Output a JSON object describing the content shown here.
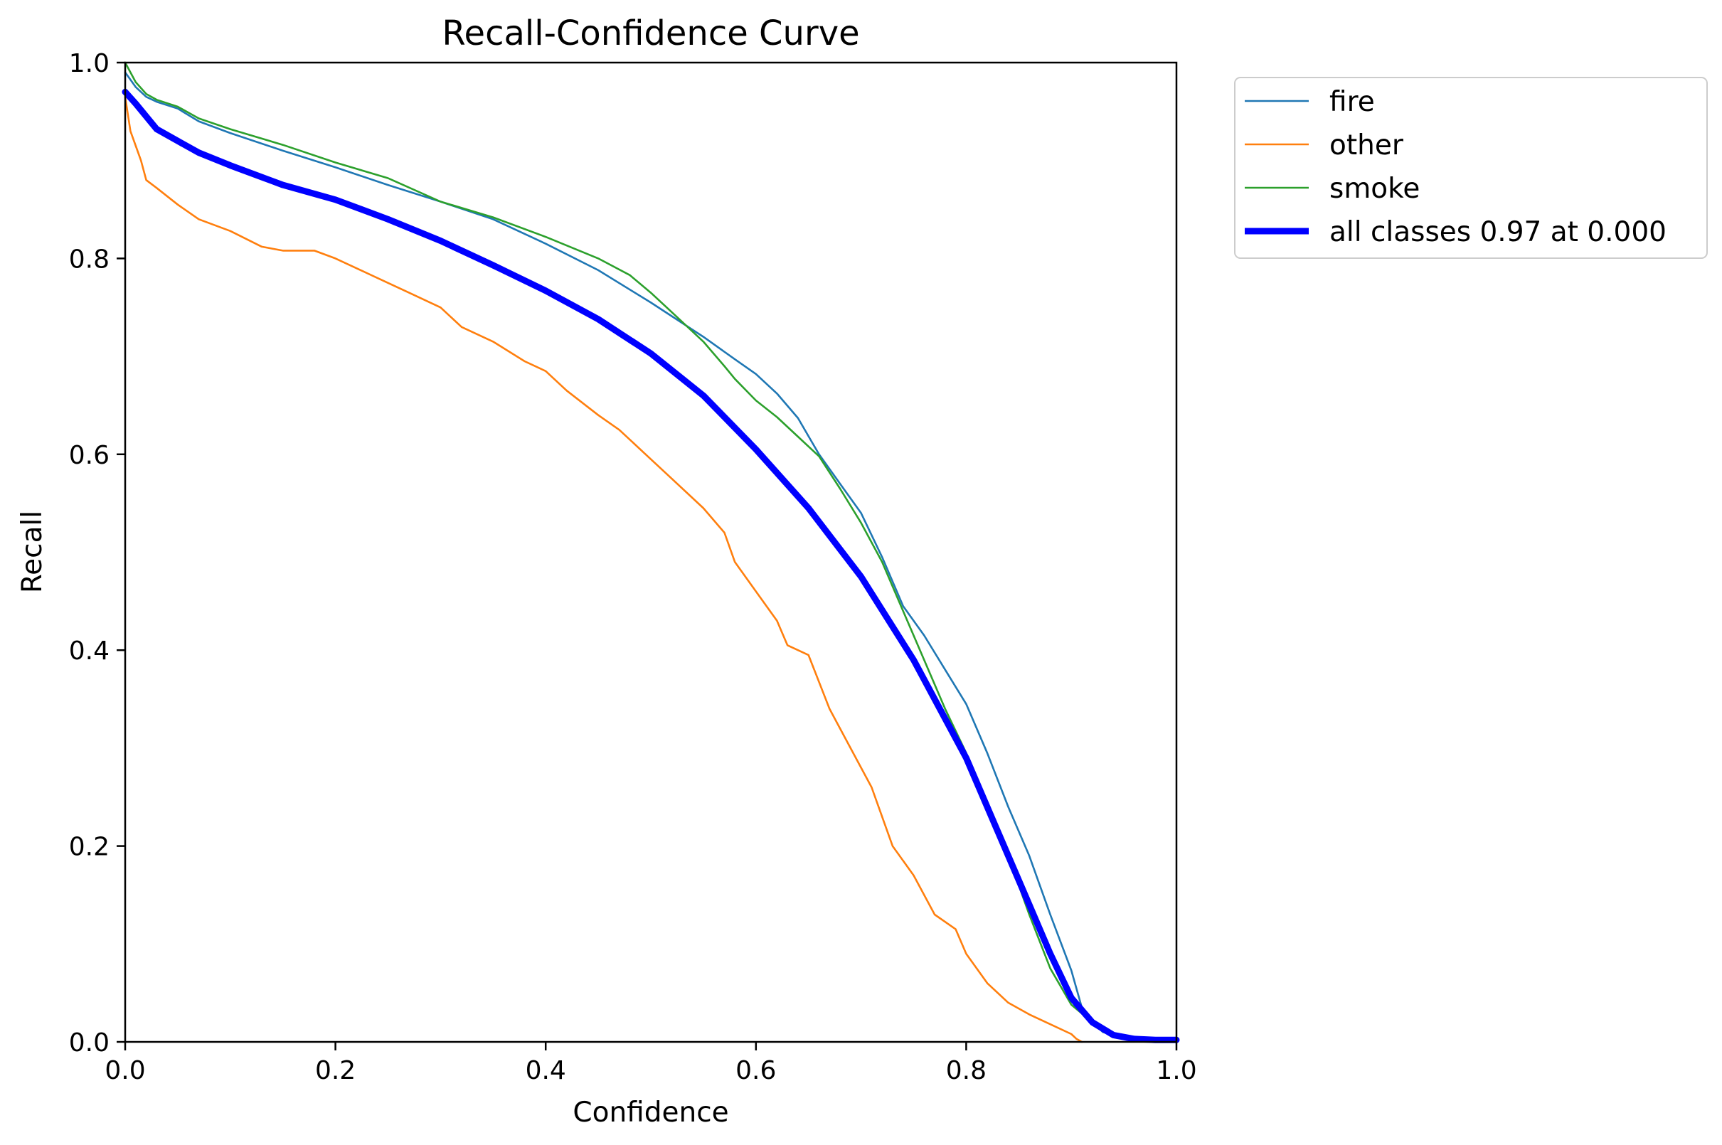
{
  "chart_data": {
    "type": "line",
    "title": "Recall-Confidence Curve",
    "xlabel": "Confidence",
    "ylabel": "Recall",
    "xlim": [
      0.0,
      1.0
    ],
    "ylim": [
      0.0,
      1.0
    ],
    "grid": false,
    "legend_position": "outside-top-right",
    "x_ticks": [
      "0.0",
      "0.2",
      "0.4",
      "0.6",
      "0.8",
      "1.0"
    ],
    "y_ticks": [
      "0.0",
      "0.2",
      "0.4",
      "0.6",
      "0.8",
      "1.0"
    ],
    "series": [
      {
        "name": "fire",
        "label": "fire",
        "color": "#1f77b4",
        "thickness": "thin",
        "points": [
          [
            0.0,
            0.99
          ],
          [
            0.01,
            0.975
          ],
          [
            0.02,
            0.965
          ],
          [
            0.03,
            0.96
          ],
          [
            0.05,
            0.953
          ],
          [
            0.07,
            0.94
          ],
          [
            0.1,
            0.928
          ],
          [
            0.15,
            0.91
          ],
          [
            0.2,
            0.893
          ],
          [
            0.25,
            0.875
          ],
          [
            0.3,
            0.858
          ],
          [
            0.35,
            0.84
          ],
          [
            0.4,
            0.815
          ],
          [
            0.45,
            0.788
          ],
          [
            0.5,
            0.755
          ],
          [
            0.55,
            0.72
          ],
          [
            0.58,
            0.697
          ],
          [
            0.6,
            0.682
          ],
          [
            0.62,
            0.662
          ],
          [
            0.64,
            0.637
          ],
          [
            0.66,
            0.6
          ],
          [
            0.68,
            0.57
          ],
          [
            0.7,
            0.54
          ],
          [
            0.72,
            0.495
          ],
          [
            0.74,
            0.445
          ],
          [
            0.76,
            0.415
          ],
          [
            0.78,
            0.38
          ],
          [
            0.8,
            0.345
          ],
          [
            0.82,
            0.295
          ],
          [
            0.84,
            0.24
          ],
          [
            0.86,
            0.19
          ],
          [
            0.88,
            0.13
          ],
          [
            0.9,
            0.073
          ],
          [
            0.91,
            0.035
          ],
          [
            0.92,
            0.02
          ],
          [
            0.93,
            0.01
          ],
          [
            0.95,
            0.004
          ],
          [
            0.97,
            0.002
          ],
          [
            1.0,
            0.001
          ]
        ]
      },
      {
        "name": "other",
        "label": "other",
        "color": "#ff7f0e",
        "thickness": "thin",
        "points": [
          [
            0.0,
            0.965
          ],
          [
            0.005,
            0.93
          ],
          [
            0.01,
            0.915
          ],
          [
            0.015,
            0.9
          ],
          [
            0.02,
            0.88
          ],
          [
            0.03,
            0.872
          ],
          [
            0.05,
            0.855
          ],
          [
            0.07,
            0.84
          ],
          [
            0.1,
            0.828
          ],
          [
            0.13,
            0.812
          ],
          [
            0.15,
            0.808
          ],
          [
            0.18,
            0.808
          ],
          [
            0.2,
            0.8
          ],
          [
            0.22,
            0.79
          ],
          [
            0.25,
            0.775
          ],
          [
            0.27,
            0.765
          ],
          [
            0.3,
            0.75
          ],
          [
            0.32,
            0.73
          ],
          [
            0.35,
            0.715
          ],
          [
            0.38,
            0.695
          ],
          [
            0.4,
            0.685
          ],
          [
            0.42,
            0.665
          ],
          [
            0.45,
            0.64
          ],
          [
            0.47,
            0.625
          ],
          [
            0.5,
            0.595
          ],
          [
            0.52,
            0.575
          ],
          [
            0.55,
            0.545
          ],
          [
            0.57,
            0.52
          ],
          [
            0.58,
            0.49
          ],
          [
            0.6,
            0.46
          ],
          [
            0.62,
            0.43
          ],
          [
            0.63,
            0.405
          ],
          [
            0.65,
            0.395
          ],
          [
            0.67,
            0.34
          ],
          [
            0.69,
            0.3
          ],
          [
            0.71,
            0.26
          ],
          [
            0.73,
            0.2
          ],
          [
            0.75,
            0.17
          ],
          [
            0.77,
            0.13
          ],
          [
            0.79,
            0.115
          ],
          [
            0.8,
            0.09
          ],
          [
            0.82,
            0.06
          ],
          [
            0.84,
            0.04
          ],
          [
            0.86,
            0.028
          ],
          [
            0.88,
            0.018
          ],
          [
            0.9,
            0.008
          ],
          [
            0.905,
            0.003
          ],
          [
            0.91,
            0.0
          ]
        ]
      },
      {
        "name": "smoke",
        "label": "smoke",
        "color": "#2ca02c",
        "thickness": "thin",
        "points": [
          [
            0.0,
            1.0
          ],
          [
            0.01,
            0.98
          ],
          [
            0.02,
            0.968
          ],
          [
            0.03,
            0.962
          ],
          [
            0.05,
            0.955
          ],
          [
            0.07,
            0.943
          ],
          [
            0.1,
            0.932
          ],
          [
            0.15,
            0.916
          ],
          [
            0.2,
            0.898
          ],
          [
            0.25,
            0.882
          ],
          [
            0.3,
            0.858
          ],
          [
            0.35,
            0.842
          ],
          [
            0.4,
            0.822
          ],
          [
            0.45,
            0.8
          ],
          [
            0.48,
            0.783
          ],
          [
            0.5,
            0.765
          ],
          [
            0.52,
            0.745
          ],
          [
            0.55,
            0.715
          ],
          [
            0.57,
            0.69
          ],
          [
            0.58,
            0.677
          ],
          [
            0.6,
            0.655
          ],
          [
            0.62,
            0.638
          ],
          [
            0.64,
            0.618
          ],
          [
            0.66,
            0.598
          ],
          [
            0.68,
            0.565
          ],
          [
            0.7,
            0.53
          ],
          [
            0.72,
            0.49
          ],
          [
            0.74,
            0.44
          ],
          [
            0.76,
            0.39
          ],
          [
            0.78,
            0.34
          ],
          [
            0.8,
            0.295
          ],
          [
            0.82,
            0.24
          ],
          [
            0.84,
            0.19
          ],
          [
            0.86,
            0.13
          ],
          [
            0.88,
            0.075
          ],
          [
            0.9,
            0.038
          ],
          [
            0.92,
            0.02
          ],
          [
            0.93,
            0.012
          ],
          [
            0.95,
            0.004
          ],
          [
            0.97,
            0.002
          ],
          [
            1.0,
            0.001
          ]
        ]
      },
      {
        "name": "all classes",
        "label": "all classes 0.97 at 0.000",
        "color": "#0000ff",
        "thickness": "thick",
        "points": [
          [
            0.0,
            0.97
          ],
          [
            0.01,
            0.958
          ],
          [
            0.02,
            0.945
          ],
          [
            0.03,
            0.932
          ],
          [
            0.05,
            0.92
          ],
          [
            0.07,
            0.908
          ],
          [
            0.1,
            0.895
          ],
          [
            0.15,
            0.875
          ],
          [
            0.2,
            0.86
          ],
          [
            0.25,
            0.84
          ],
          [
            0.3,
            0.818
          ],
          [
            0.35,
            0.793
          ],
          [
            0.4,
            0.767
          ],
          [
            0.45,
            0.738
          ],
          [
            0.5,
            0.703
          ],
          [
            0.55,
            0.66
          ],
          [
            0.6,
            0.605
          ],
          [
            0.65,
            0.545
          ],
          [
            0.7,
            0.475
          ],
          [
            0.75,
            0.39
          ],
          [
            0.8,
            0.29
          ],
          [
            0.83,
            0.215
          ],
          [
            0.86,
            0.14
          ],
          [
            0.88,
            0.09
          ],
          [
            0.9,
            0.045
          ],
          [
            0.92,
            0.02
          ],
          [
            0.94,
            0.007
          ],
          [
            0.96,
            0.003
          ],
          [
            0.98,
            0.002
          ],
          [
            1.0,
            0.002
          ]
        ]
      }
    ]
  }
}
